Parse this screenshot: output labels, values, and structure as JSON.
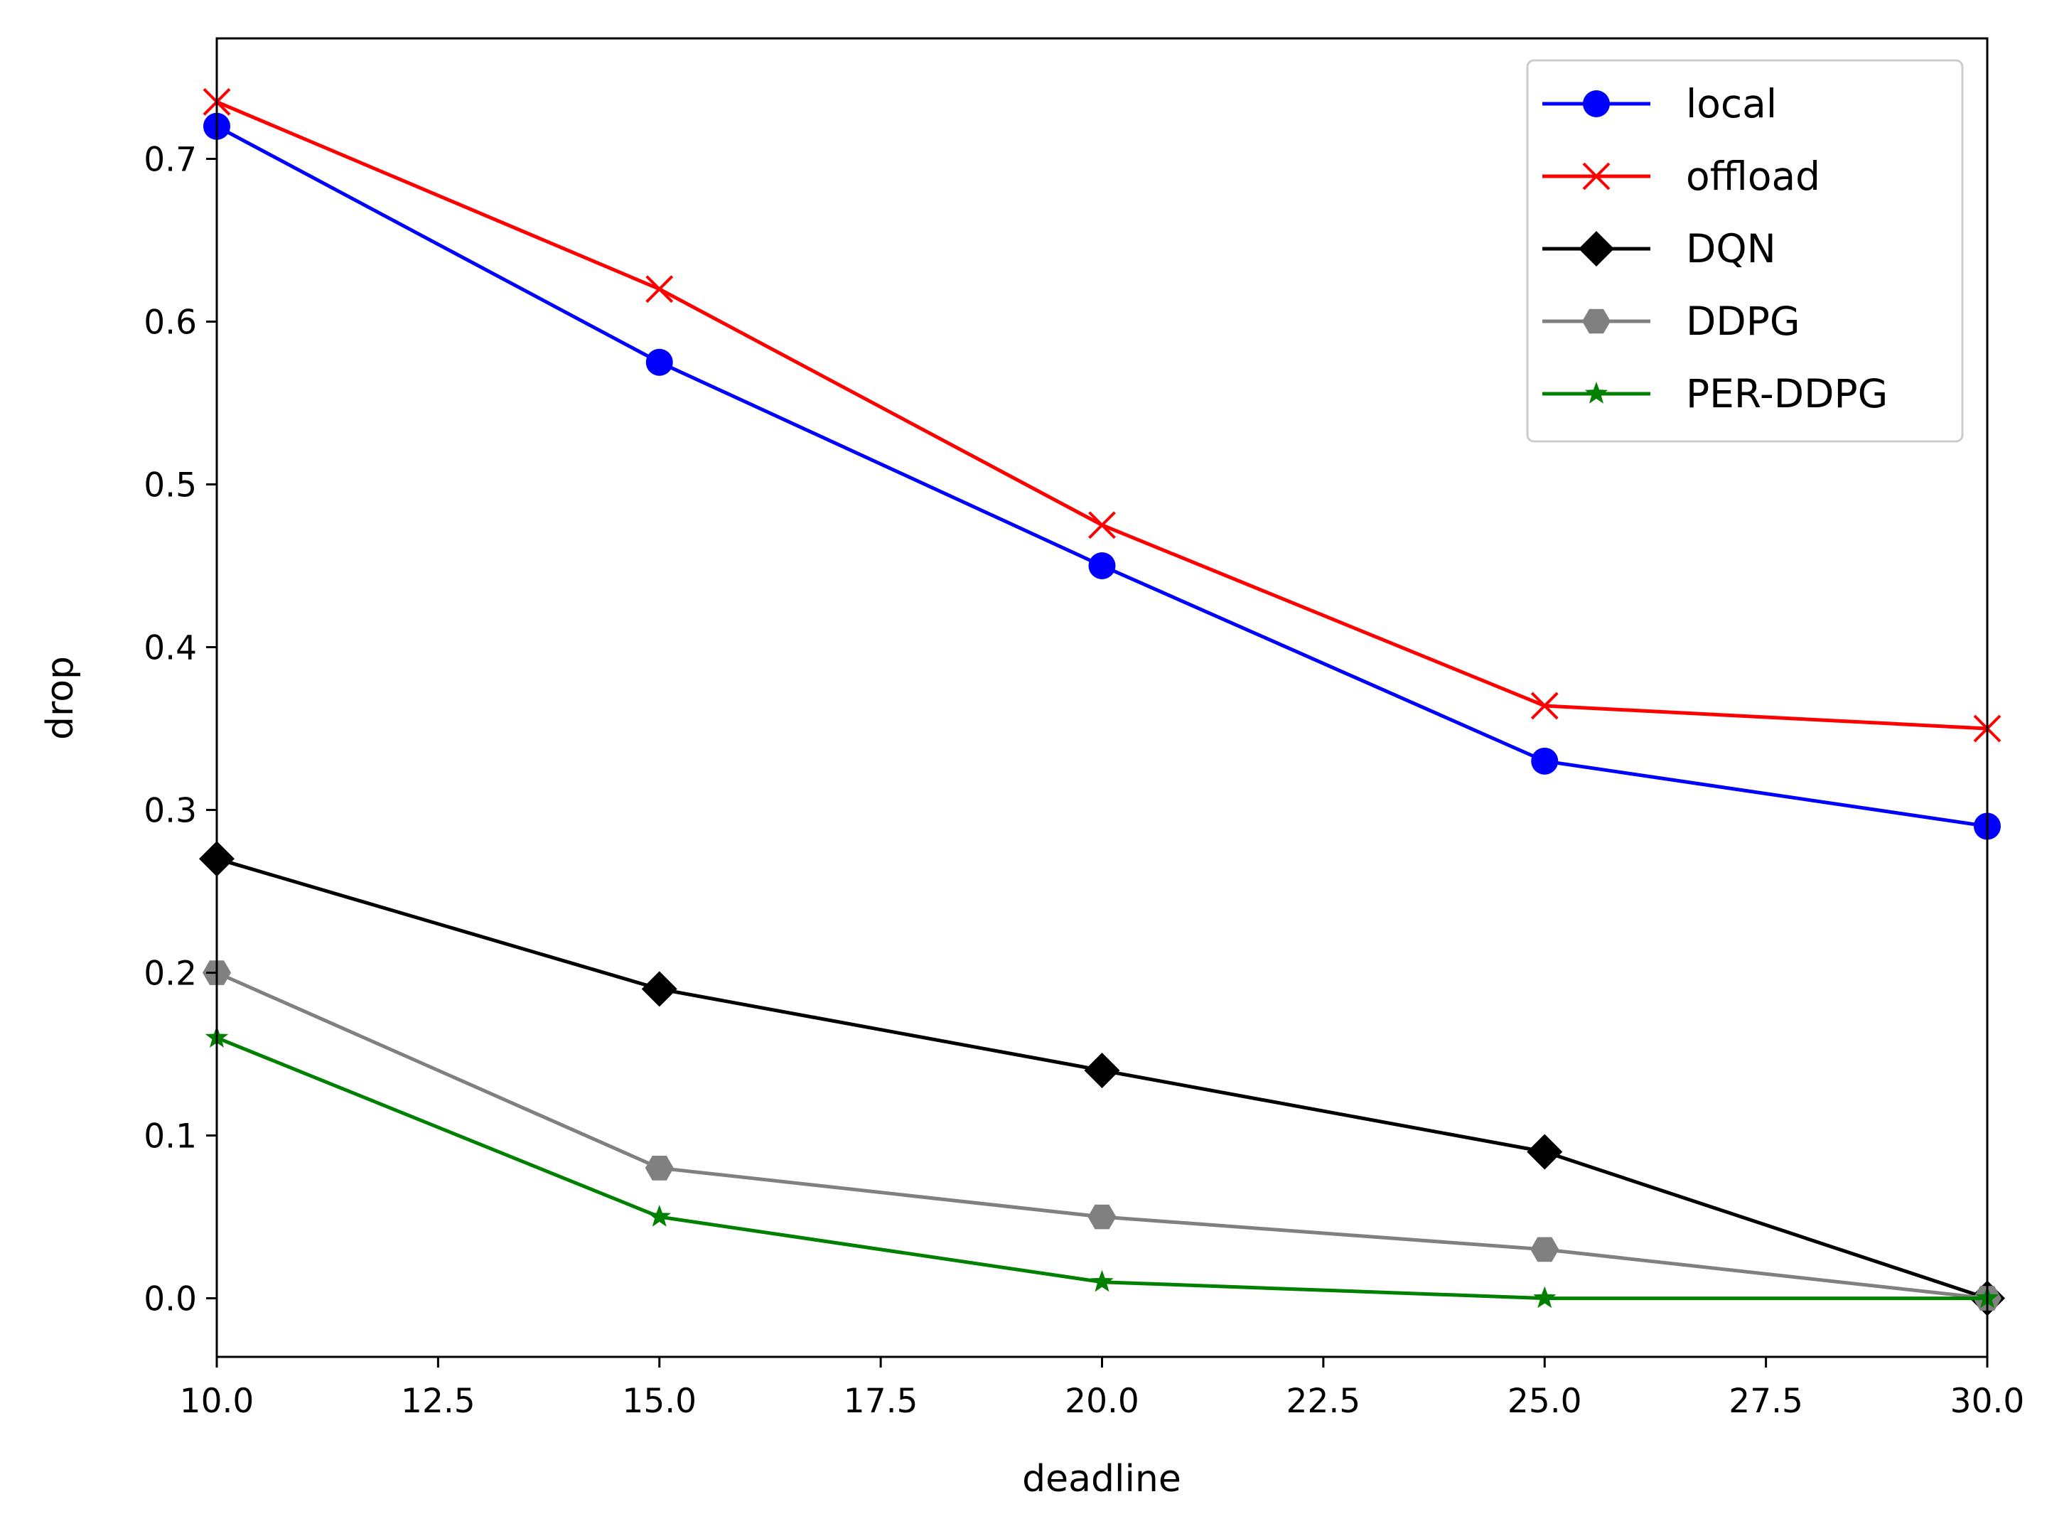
{
  "chart_data": {
    "type": "line",
    "title": "",
    "xlabel": "deadline",
    "ylabel": "drop",
    "xlim": [
      10.0,
      30.0
    ],
    "ylim": [
      -0.036,
      0.774
    ],
    "x_ticks": [
      "10.0",
      "12.5",
      "15.0",
      "17.5",
      "20.0",
      "22.5",
      "25.0",
      "27.5",
      "30.0"
    ],
    "y_ticks": [
      "0.0",
      "0.1",
      "0.2",
      "0.3",
      "0.4",
      "0.5",
      "0.6",
      "0.7"
    ],
    "grid": false,
    "legend_position": "top-right",
    "x": [
      10,
      15,
      20,
      25,
      30
    ],
    "series": [
      {
        "name": "local",
        "color": "#0000ff",
        "marker": "circle",
        "values": [
          0.72,
          0.575,
          0.45,
          0.33,
          0.29
        ]
      },
      {
        "name": "offload",
        "color": "#ff0000",
        "marker": "x",
        "values": [
          0.735,
          0.62,
          0.475,
          0.364,
          0.35
        ]
      },
      {
        "name": "DQN",
        "color": "#000000",
        "marker": "diamond",
        "values": [
          0.27,
          0.19,
          0.14,
          0.09,
          0.0
        ]
      },
      {
        "name": "DDPG",
        "color": "#808080",
        "marker": "hexagon",
        "values": [
          0.2,
          0.08,
          0.05,
          0.03,
          0.0
        ]
      },
      {
        "name": "PER-DDPG",
        "color": "#008000",
        "marker": "star",
        "values": [
          0.16,
          0.05,
          0.01,
          0.0,
          0.0
        ]
      }
    ]
  }
}
